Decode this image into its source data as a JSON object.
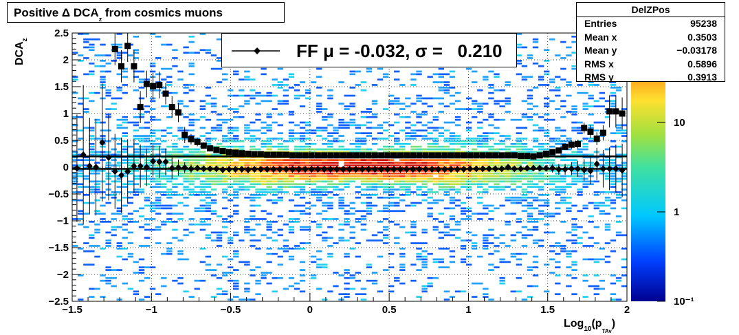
{
  "title": {
    "main": "Positive Δ DCA",
    "sub": "z",
    "rest": " from cosmics muons"
  },
  "stats": {
    "name": "DelZPos",
    "rows": [
      {
        "label": "Entries",
        "value": "95238"
      },
      {
        "label": "Mean x",
        "value": "0.3503"
      },
      {
        "label": "Mean y",
        "value": "−0.03178"
      },
      {
        "label": "RMS x",
        "value": "0.5896"
      },
      {
        "label": "RMS y",
        "value": "0.3913"
      }
    ]
  },
  "legend": {
    "text": "FF μ = -0.032, σ =   0.210"
  },
  "colors": {
    "black": "#000000",
    "grid": "#000000"
  },
  "chart_data": {
    "type": "heatmap",
    "xlabel": {
      "main": "Log",
      "sub": "10",
      "mid": "(p",
      "sub2": "TAv",
      "end": ")"
    },
    "ylabel": {
      "main": "DCA",
      "sub": "z"
    },
    "xlim": [
      -1.5,
      2
    ],
    "ylim": [
      -2.5,
      2.5
    ],
    "x_ticks": [
      "−1.5",
      "−1",
      "−0.5",
      "0",
      "0.5",
      "1",
      "1.5",
      "2"
    ],
    "y_ticks": [
      "2.5",
      "2",
      "1.5",
      "1",
      "0.5",
      "0",
      "−0.5",
      "−1",
      "−1.5",
      "−2",
      "−2.5"
    ],
    "z_scale": "log",
    "z_ticks": [
      "10",
      "1",
      "10⁻¹"
    ],
    "grid": true,
    "series": [
      {
        "marker": "square",
        "x": [
          -1.23,
          -1.19,
          -1.15,
          -1.11,
          -1.07,
          -1.03,
          -0.99,
          -0.95,
          -0.91,
          -0.87,
          -0.83,
          -0.79,
          -0.75,
          -0.71,
          -0.67,
          -0.63,
          -0.59,
          -0.55,
          -0.51,
          -0.47,
          -0.43,
          -0.39,
          -0.35,
          -0.31,
          -0.27,
          -0.23,
          -0.19,
          -0.15,
          -0.11,
          -0.07,
          -0.03,
          0.01,
          0.05,
          0.09,
          0.13,
          0.17,
          0.21,
          0.25,
          0.29,
          0.33,
          0.37,
          0.41,
          0.45,
          0.49,
          0.53,
          0.57,
          0.61,
          0.65,
          0.69,
          0.73,
          0.77,
          0.81,
          0.85,
          0.89,
          0.93,
          0.97,
          1.01,
          1.05,
          1.09,
          1.13,
          1.17,
          1.21,
          1.25,
          1.29,
          1.33,
          1.37,
          1.41,
          1.45,
          1.49,
          1.53,
          1.57,
          1.61,
          1.65,
          1.69,
          1.73,
          1.77,
          1.81,
          1.85,
          1.89,
          1.93,
          1.97
        ],
        "y": [
          2.2,
          1.88,
          2.26,
          1.88,
          1.12,
          1.55,
          1.51,
          1.53,
          1.37,
          1.12,
          1.02,
          0.6,
          0.52,
          0.47,
          0.4,
          0.35,
          0.32,
          0.3,
          0.28,
          0.27,
          0.26,
          0.25,
          0.24,
          0.24,
          0.23,
          0.23,
          0.23,
          0.23,
          0.22,
          0.22,
          0.22,
          0.22,
          0.22,
          0.22,
          0.22,
          0.22,
          0.22,
          0.22,
          0.22,
          0.22,
          0.22,
          0.22,
          0.22,
          0.22,
          0.22,
          0.22,
          0.22,
          0.22,
          0.22,
          0.22,
          0.22,
          0.22,
          0.22,
          0.22,
          0.22,
          0.22,
          0.22,
          0.22,
          0.22,
          0.22,
          0.22,
          0.22,
          0.22,
          0.22,
          0.21,
          0.21,
          0.2,
          0.22,
          0.25,
          0.28,
          0.31,
          0.38,
          0.42,
          0.43,
          0.73,
          0.66,
          0.53,
          0.64,
          1.04,
          1.04,
          1.0
        ],
        "err": [
          0.3,
          0.3,
          0.3,
          0.3,
          0.3,
          0.25,
          0.25,
          0.25,
          0.2,
          0.2,
          0.18,
          0.15,
          0.1,
          0.08,
          0.06,
          0.05,
          0.04,
          0.03,
          0.03,
          0.02,
          0.02,
          0.02,
          0.02,
          0.02,
          0.02,
          0.02,
          0.02,
          0.02,
          0.02,
          0.02,
          0.02,
          0.02,
          0.02,
          0.02,
          0.02,
          0.02,
          0.02,
          0.02,
          0.02,
          0.02,
          0.02,
          0.02,
          0.02,
          0.02,
          0.02,
          0.02,
          0.02,
          0.02,
          0.02,
          0.02,
          0.02,
          0.02,
          0.02,
          0.02,
          0.02,
          0.02,
          0.02,
          0.02,
          0.02,
          0.02,
          0.02,
          0.02,
          0.02,
          0.02,
          0.02,
          0.02,
          0.02,
          0.03,
          0.03,
          0.04,
          0.04,
          0.06,
          0.08,
          0.08,
          0.1,
          0.12,
          0.12,
          0.14,
          0.3,
          0.3,
          0.3
        ]
      },
      {
        "marker": "diamond",
        "x": [
          -1.47,
          -1.43,
          -1.39,
          -1.35,
          -1.31,
          -1.27,
          -1.23,
          -1.19,
          -1.15,
          -1.11,
          -1.07,
          -1.03,
          -0.99,
          -0.95,
          -0.91,
          -0.87,
          -0.83,
          -0.79,
          -0.75,
          -0.71,
          -0.67,
          -0.63,
          -0.59,
          -0.55,
          -0.51,
          -0.47,
          -0.43,
          -0.39,
          -0.35,
          -0.31,
          -0.27,
          -0.23,
          -0.19,
          -0.15,
          -0.11,
          -0.07,
          -0.03,
          0.01,
          0.05,
          0.09,
          0.13,
          0.17,
          0.21,
          0.25,
          0.29,
          0.33,
          0.37,
          0.41,
          0.45,
          0.49,
          0.53,
          0.57,
          0.61,
          0.65,
          0.69,
          0.73,
          0.77,
          0.81,
          0.85,
          0.89,
          0.93,
          0.97,
          1.01,
          1.05,
          1.09,
          1.13,
          1.17,
          1.21,
          1.25,
          1.29,
          1.33,
          1.37,
          1.41,
          1.45,
          1.49,
          1.53,
          1.57,
          1.61,
          1.65,
          1.69,
          1.73,
          1.77,
          1.81,
          1.85,
          1.89,
          1.93,
          1.97
        ],
        "y": [
          -0.02,
          0.23,
          0.02,
          0.0,
          0.46,
          0.18,
          -0.08,
          -0.15,
          -0.08,
          0.02,
          0.02,
          0.0,
          0.11,
          0.1,
          0.1,
          -0.02,
          -0.01,
          -0.01,
          -0.03,
          -0.02,
          -0.03,
          -0.03,
          -0.03,
          -0.05,
          -0.04,
          -0.04,
          -0.04,
          -0.05,
          -0.04,
          -0.04,
          -0.04,
          -0.04,
          -0.04,
          -0.04,
          -0.04,
          -0.04,
          -0.04,
          -0.04,
          -0.04,
          -0.04,
          -0.04,
          -0.04,
          -0.04,
          -0.04,
          -0.04,
          -0.04,
          -0.04,
          -0.04,
          -0.04,
          -0.04,
          -0.04,
          -0.04,
          -0.04,
          -0.04,
          -0.04,
          -0.04,
          -0.04,
          -0.04,
          -0.04,
          -0.04,
          -0.04,
          -0.04,
          -0.03,
          -0.03,
          -0.03,
          -0.03,
          -0.03,
          -0.03,
          0.0,
          -0.03,
          -0.03,
          -0.02,
          -0.02,
          -0.02,
          -0.02,
          -0.02,
          -0.04,
          -0.04,
          -0.03,
          -0.03,
          -0.05,
          -0.07,
          0.06,
          -0.03,
          -0.03,
          -0.03,
          -0.06
        ],
        "err": [
          1.0,
          1.3,
          0.9,
          0.9,
          1.1,
          0.8,
          0.7,
          0.7,
          0.6,
          0.5,
          0.4,
          0.35,
          0.3,
          0.3,
          0.25,
          0.2,
          0.15,
          0.1,
          0.08,
          0.05,
          0.05,
          0.04,
          0.03,
          0.03,
          0.03,
          0.02,
          0.02,
          0.02,
          0.02,
          0.02,
          0.02,
          0.02,
          0.02,
          0.02,
          0.02,
          0.02,
          0.02,
          0.02,
          0.02,
          0.02,
          0.02,
          0.02,
          0.02,
          0.02,
          0.02,
          0.02,
          0.02,
          0.02,
          0.02,
          0.02,
          0.02,
          0.02,
          0.02,
          0.02,
          0.02,
          0.02,
          0.02,
          0.02,
          0.02,
          0.02,
          0.02,
          0.02,
          0.02,
          0.02,
          0.02,
          0.02,
          0.02,
          0.02,
          0.03,
          0.03,
          0.03,
          0.04,
          0.05,
          0.05,
          0.06,
          0.08,
          0.1,
          0.1,
          0.12,
          0.15,
          0.2,
          0.25,
          0.3,
          0.35,
          0.4,
          0.45,
          0.5
        ]
      }
    ],
    "fit_lines": [
      {
        "y": 0.2
      },
      {
        "y": -0.032
      }
    ]
  }
}
